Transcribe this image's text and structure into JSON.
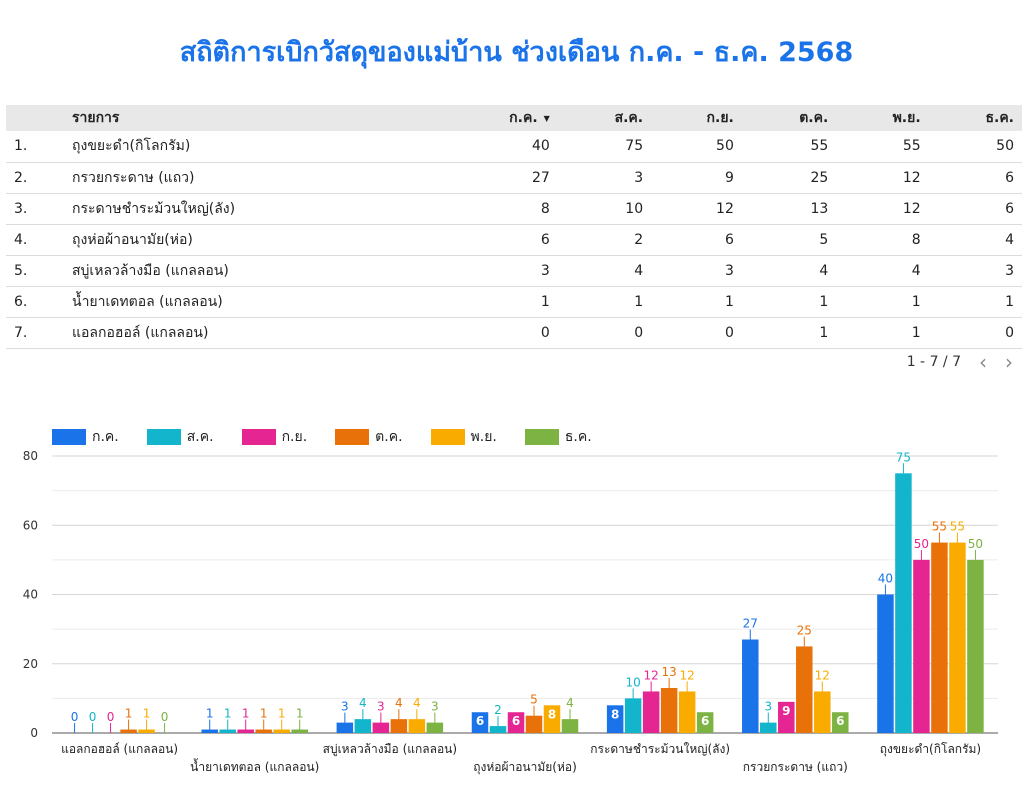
{
  "title": "สถิติการเบิกวัสดุของแม่บ้าน ช่วงเดือน ก.ค. - ธ.ค. 2568",
  "table": {
    "header_item": "รายการ",
    "months": [
      "ก.ค.",
      "ส.ค.",
      "ก.ย.",
      "ต.ค.",
      "พ.ย.",
      "ธ.ค."
    ],
    "rows": [
      {
        "idx": "1.",
        "name": "ถุงขยะดำ(กิโลกรัม)",
        "values": [
          40,
          75,
          50,
          55,
          55,
          50
        ]
      },
      {
        "idx": "2.",
        "name": "กรวยกระดาษ (แถว)",
        "values": [
          27,
          3,
          9,
          25,
          12,
          6
        ]
      },
      {
        "idx": "3.",
        "name": "กระดาษชำระม้วนใหญ่(ลัง)",
        "values": [
          8,
          10,
          12,
          13,
          12,
          6
        ]
      },
      {
        "idx": "4.",
        "name": "ถุงห่อผ้าอนามัย(ห่อ)",
        "values": [
          6,
          2,
          6,
          5,
          8,
          4
        ]
      },
      {
        "idx": "5.",
        "name": "สบู่เหลวล้างมือ (แกลลอน)",
        "values": [
          3,
          4,
          3,
          4,
          4,
          3
        ]
      },
      {
        "idx": "6.",
        "name": "น้ำยาเดทตอล (แกลลอน)",
        "values": [
          1,
          1,
          1,
          1,
          1,
          1
        ]
      },
      {
        "idx": "7.",
        "name": "แอลกอฮอล์ (แกลลอน)",
        "values": [
          0,
          0,
          0,
          1,
          1,
          0
        ]
      }
    ],
    "pager_text": "1 - 7 / 7"
  },
  "chart_data": {
    "type": "bar",
    "categories": [
      "แอลกอฮอล์ (แกลลอน)",
      "น้ำยาเดทตอล (แกลลอน)",
      "สบู่เหลวล้างมือ (แกลลอน)",
      "ถุงห่อผ้าอนามัย(ห่อ)",
      "กระดาษชำระม้วนใหญ่(ลัง)",
      "กรวยกระดาษ (แถว)",
      "ถุงขยะดำ(กิโลกรัม)"
    ],
    "series": [
      {
        "name": "ก.ค.",
        "color": "#1a73e8",
        "values": [
          0,
          1,
          3,
          6,
          8,
          27,
          40
        ]
      },
      {
        "name": "ส.ค.",
        "color": "#12b5cb",
        "values": [
          0,
          1,
          4,
          2,
          10,
          3,
          75
        ]
      },
      {
        "name": "ก.ย.",
        "color": "#e52592",
        "values": [
          0,
          1,
          3,
          6,
          12,
          9,
          50
        ]
      },
      {
        "name": "ต.ค.",
        "color": "#e8710a",
        "values": [
          1,
          1,
          4,
          5,
          13,
          25,
          55
        ]
      },
      {
        "name": "พ.ย.",
        "color": "#f9ab00",
        "values": [
          1,
          1,
          4,
          8,
          12,
          12,
          55
        ]
      },
      {
        "name": "ธ.ค.",
        "color": "#7cb342",
        "values": [
          0,
          1,
          3,
          4,
          6,
          6,
          50
        ]
      }
    ],
    "y_ticks": [
      0,
      20,
      40,
      60,
      80
    ],
    "ylim": [
      0,
      80
    ],
    "legend_position": "top-left",
    "grid": true
  }
}
